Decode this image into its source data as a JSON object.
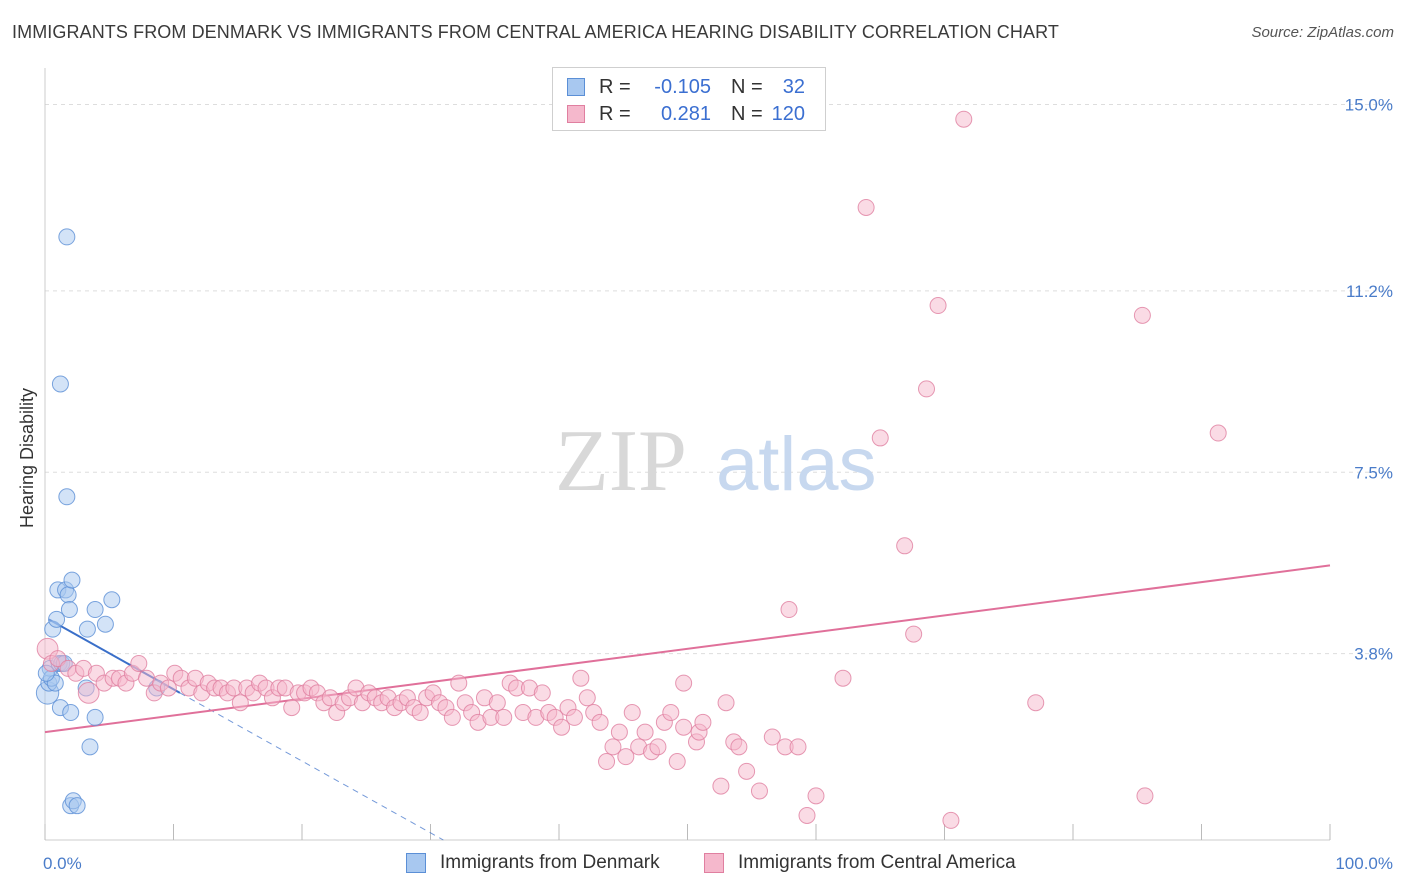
{
  "title": "IMMIGRANTS FROM DENMARK VS IMMIGRANTS FROM CENTRAL AMERICA HEARING DISABILITY CORRELATION CHART",
  "source": "Source: ZipAtlas.com",
  "watermark": {
    "zip": "ZIP",
    "atlas": "atlas"
  },
  "legend": {
    "rows": [
      {
        "r_label": "R =",
        "r_value": "-0.105",
        "n_label": "N =",
        "n_value": "32"
      },
      {
        "r_label": "R =",
        "r_value": "0.281",
        "n_label": "N =",
        "n_value": "120"
      }
    ]
  },
  "bottom_legend": [
    "Immigrants from Denmark",
    "Immigrants from Central America"
  ],
  "colors": {
    "denmark_fill": "#a8c8f0",
    "denmark_stroke": "#5b8fd6",
    "denmark_line": "#3a6fc9",
    "central_fill": "#f5b8cc",
    "central_stroke": "#e07fa0",
    "central_line": "#e0709a",
    "tick_label": "#4a7cc9",
    "grid": "#dddddd"
  },
  "chart_data": {
    "type": "scatter",
    "xlabel": "",
    "ylabel": "Hearing Disability",
    "xlim": [
      0,
      100
    ],
    "ylim": [
      0,
      15.5
    ],
    "x_tick_labels": [
      {
        "value": 0,
        "label": "0.0%"
      },
      {
        "value": 100,
        "label": "100.0%"
      }
    ],
    "y_tick_labels": [
      {
        "value": 3.8,
        "label": "3.8%"
      },
      {
        "value": 7.5,
        "label": "7.5%"
      },
      {
        "value": 11.2,
        "label": "11.2%"
      },
      {
        "value": 15.0,
        "label": "15.0%"
      }
    ],
    "series": [
      {
        "name": "Immigrants from Denmark",
        "points": [
          [
            0.2,
            3.0,
            1.4
          ],
          [
            0.3,
            3.2,
            1.0
          ],
          [
            0.4,
            3.5,
            1.0
          ],
          [
            0.5,
            3.3,
            1.0
          ],
          [
            0.6,
            4.3,
            1.0
          ],
          [
            0.8,
            3.2,
            1.0
          ],
          [
            0.9,
            4.5,
            1.0
          ],
          [
            1.0,
            5.1,
            1.0
          ],
          [
            1.1,
            3.6,
            1.0
          ],
          [
            1.2,
            2.7,
            1.0
          ],
          [
            1.2,
            9.3,
            1.0
          ],
          [
            1.3,
            3.6,
            1.0
          ],
          [
            1.5,
            3.6,
            1.0
          ],
          [
            1.6,
            5.1,
            1.0
          ],
          [
            1.7,
            12.3,
            1.0
          ],
          [
            1.7,
            7.0,
            1.0
          ],
          [
            1.8,
            5.0,
            1.0
          ],
          [
            1.9,
            4.7,
            1.0
          ],
          [
            2.0,
            2.6,
            1.0
          ],
          [
            2.0,
            0.7,
            1.0
          ],
          [
            2.1,
            5.3,
            1.0
          ],
          [
            2.2,
            0.8,
            1.0
          ],
          [
            2.5,
            0.7,
            1.0
          ],
          [
            3.2,
            3.1,
            1.0
          ],
          [
            3.3,
            4.3,
            1.0
          ],
          [
            3.5,
            1.9,
            1.0
          ],
          [
            3.9,
            2.5,
            1.0
          ],
          [
            3.9,
            4.7,
            1.0
          ],
          [
            4.7,
            4.4,
            1.0
          ],
          [
            5.2,
            4.9,
            1.0
          ],
          [
            8.7,
            3.1,
            1.0
          ],
          [
            0.1,
            3.4,
            1.0
          ]
        ]
      },
      {
        "name": "Immigrants from Central America",
        "points": [
          [
            0.2,
            3.9,
            1.3
          ],
          [
            0.5,
            3.6,
            1.0
          ],
          [
            1.0,
            3.7,
            1.0
          ],
          [
            1.8,
            3.5,
            1.0
          ],
          [
            2.4,
            3.4,
            1.0
          ],
          [
            3.0,
            3.5,
            1.0
          ],
          [
            3.4,
            3.0,
            1.3
          ],
          [
            4.0,
            3.4,
            1.0
          ],
          [
            4.6,
            3.2,
            1.0
          ],
          [
            5.3,
            3.3,
            1.0
          ],
          [
            5.8,
            3.3,
            1.0
          ],
          [
            6.3,
            3.2,
            1.0
          ],
          [
            6.8,
            3.4,
            1.0
          ],
          [
            7.3,
            3.6,
            1.0
          ],
          [
            7.9,
            3.3,
            1.0
          ],
          [
            8.5,
            3.0,
            1.0
          ],
          [
            9.0,
            3.2,
            1.0
          ],
          [
            9.6,
            3.1,
            1.0
          ],
          [
            10.1,
            3.4,
            1.0
          ],
          [
            10.6,
            3.3,
            1.0
          ],
          [
            11.2,
            3.1,
            1.0
          ],
          [
            11.7,
            3.3,
            1.0
          ],
          [
            12.2,
            3.0,
            1.0
          ],
          [
            12.7,
            3.2,
            1.0
          ],
          [
            13.2,
            3.1,
            1.0
          ],
          [
            13.7,
            3.1,
            1.0
          ],
          [
            14.2,
            3.0,
            1.0
          ],
          [
            14.7,
            3.1,
            1.0
          ],
          [
            15.2,
            2.8,
            1.0
          ],
          [
            15.7,
            3.1,
            1.0
          ],
          [
            16.2,
            3.0,
            1.0
          ],
          [
            16.7,
            3.2,
            1.0
          ],
          [
            17.2,
            3.1,
            1.0
          ],
          [
            17.7,
            2.9,
            1.0
          ],
          [
            18.2,
            3.1,
            1.0
          ],
          [
            18.7,
            3.1,
            1.0
          ],
          [
            19.2,
            2.7,
            1.0
          ],
          [
            19.7,
            3.0,
            1.0
          ],
          [
            20.2,
            3.0,
            1.0
          ],
          [
            20.7,
            3.1,
            1.0
          ],
          [
            21.2,
            3.0,
            1.0
          ],
          [
            21.7,
            2.8,
            1.0
          ],
          [
            22.2,
            2.9,
            1.0
          ],
          [
            22.7,
            2.6,
            1.0
          ],
          [
            23.2,
            2.8,
            1.0
          ],
          [
            23.7,
            2.9,
            1.0
          ],
          [
            24.2,
            3.1,
            1.0
          ],
          [
            24.7,
            2.8,
            1.0
          ],
          [
            25.2,
            3.0,
            1.0
          ],
          [
            25.7,
            2.9,
            1.0
          ],
          [
            26.2,
            2.8,
            1.0
          ],
          [
            26.7,
            2.9,
            1.0
          ],
          [
            27.2,
            2.7,
            1.0
          ],
          [
            27.7,
            2.8,
            1.0
          ],
          [
            28.2,
            2.9,
            1.0
          ],
          [
            28.7,
            2.7,
            1.0
          ],
          [
            29.2,
            2.6,
            1.0
          ],
          [
            29.7,
            2.9,
            1.0
          ],
          [
            30.2,
            3.0,
            1.0
          ],
          [
            30.7,
            2.8,
            1.0
          ],
          [
            31.2,
            2.7,
            1.0
          ],
          [
            31.7,
            2.5,
            1.0
          ],
          [
            32.2,
            3.2,
            1.0
          ],
          [
            32.7,
            2.8,
            1.0
          ],
          [
            33.2,
            2.6,
            1.0
          ],
          [
            33.7,
            2.4,
            1.0
          ],
          [
            34.2,
            2.9,
            1.0
          ],
          [
            34.7,
            2.5,
            1.0
          ],
          [
            35.2,
            2.8,
            1.0
          ],
          [
            35.7,
            2.5,
            1.0
          ],
          [
            36.2,
            3.2,
            1.0
          ],
          [
            36.7,
            3.1,
            1.0
          ],
          [
            37.2,
            2.6,
            1.0
          ],
          [
            37.7,
            3.1,
            1.0
          ],
          [
            38.2,
            2.5,
            1.0
          ],
          [
            38.7,
            3.0,
            1.0
          ],
          [
            39.2,
            2.6,
            1.0
          ],
          [
            39.7,
            2.5,
            1.0
          ],
          [
            40.2,
            2.3,
            1.0
          ],
          [
            40.7,
            2.7,
            1.0
          ],
          [
            41.2,
            2.5,
            1.0
          ],
          [
            41.7,
            3.3,
            1.0
          ],
          [
            42.2,
            2.9,
            1.0
          ],
          [
            42.7,
            2.6,
            1.0
          ],
          [
            43.2,
            2.4,
            1.0
          ],
          [
            43.7,
            1.6,
            1.0
          ],
          [
            44.2,
            1.9,
            1.0
          ],
          [
            44.7,
            2.2,
            1.0
          ],
          [
            45.2,
            1.7,
            1.0
          ],
          [
            45.7,
            2.6,
            1.0
          ],
          [
            46.2,
            1.9,
            1.0
          ],
          [
            46.7,
            2.2,
            1.0
          ],
          [
            47.2,
            1.8,
            1.0
          ],
          [
            47.7,
            1.9,
            1.0
          ],
          [
            48.2,
            2.4,
            1.0
          ],
          [
            48.7,
            2.6,
            1.0
          ],
          [
            49.2,
            1.6,
            1.0
          ],
          [
            49.7,
            2.3,
            1.0
          ],
          [
            49.7,
            3.2,
            1.0
          ],
          [
            50.7,
            2.0,
            1.0
          ],
          [
            50.9,
            2.2,
            1.0
          ],
          [
            51.2,
            2.4,
            1.0
          ],
          [
            52.6,
            1.1,
            1.0
          ],
          [
            53.0,
            2.8,
            1.0
          ],
          [
            53.6,
            2.0,
            1.0
          ],
          [
            54.0,
            1.9,
            1.0
          ],
          [
            54.6,
            1.4,
            1.0
          ],
          [
            55.6,
            1.0,
            1.0
          ],
          [
            56.6,
            2.1,
            1.0
          ],
          [
            57.6,
            1.9,
            1.0
          ],
          [
            57.9,
            4.7,
            1.0
          ],
          [
            58.6,
            1.9,
            1.0
          ],
          [
            59.3,
            0.5,
            1.0
          ],
          [
            60.0,
            0.9,
            1.0
          ],
          [
            62.1,
            3.3,
            1.0
          ],
          [
            63.9,
            12.9,
            1.0
          ],
          [
            65.0,
            8.2,
            1.0
          ],
          [
            66.9,
            6.0,
            1.0
          ],
          [
            67.6,
            4.2,
            1.0
          ],
          [
            68.6,
            9.2,
            1.0
          ],
          [
            69.5,
            10.9,
            1.0
          ],
          [
            70.5,
            0.4,
            1.0
          ],
          [
            71.5,
            14.7,
            1.0
          ],
          [
            77.1,
            2.8,
            1.0
          ],
          [
            85.4,
            10.7,
            1.0
          ],
          [
            85.6,
            0.9,
            1.0
          ],
          [
            91.3,
            8.3,
            1.0
          ]
        ]
      }
    ],
    "trend_lines": [
      {
        "series": "Immigrants from Denmark",
        "solid": [
          [
            0.3,
            4.5
          ],
          [
            10.5,
            3.0
          ]
        ],
        "dashed": [
          [
            10.5,
            3.0
          ],
          [
            31,
            0.0
          ]
        ]
      },
      {
        "series": "Immigrants from Central America",
        "solid": [
          [
            0,
            2.2
          ],
          [
            100,
            5.6
          ]
        ]
      }
    ],
    "grid": true,
    "legend_position": "top-center"
  }
}
